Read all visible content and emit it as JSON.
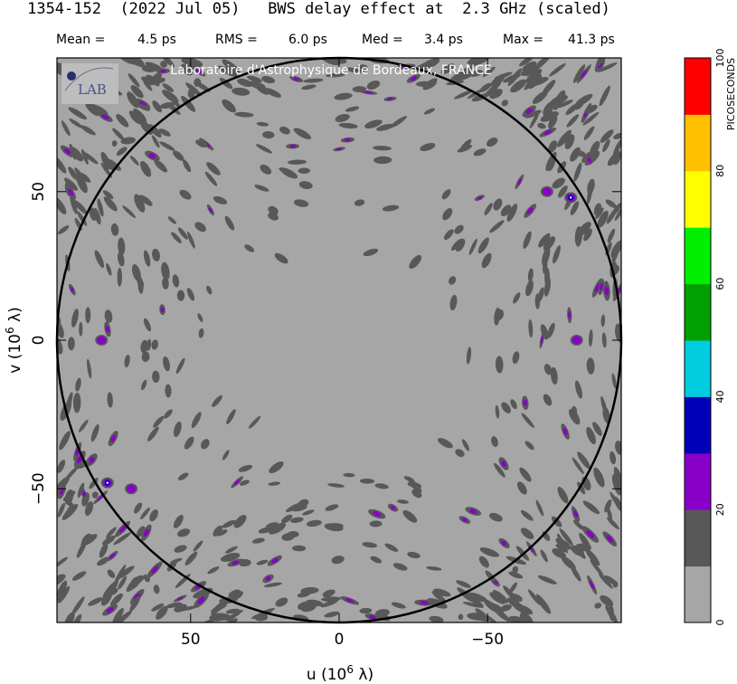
{
  "header": {
    "title": "1354-152  (2022 Jul 05)   BWS delay effect at  2.3 GHz (scaled)",
    "stats": [
      {
        "label": "Mean =",
        "value": "4.5 ps"
      },
      {
        "label": "RMS =",
        "value": "6.0 ps"
      },
      {
        "label": "Med =",
        "value": "3.4 ps"
      },
      {
        "label": "Max =",
        "value": "41.3 ps"
      }
    ]
  },
  "watermark": "Laboratoire d'Astrophysique de Bordeaux, FRANCE",
  "logo_text": "LAB",
  "axes": {
    "xlabel_main": "u  (10",
    "xlabel_exp": "6",
    "xlabel_tail": " λ)",
    "ylabel_main": "v  (10",
    "ylabel_exp": "6",
    "ylabel_tail": " λ)"
  },
  "colorbar": {
    "label": "PICOSECONDS",
    "ticks": [
      "0",
      "20",
      "40",
      "60",
      "80",
      "100"
    ],
    "bands": [
      "#a6a6a6",
      "#585858",
      "#8800c8",
      "#0000b8",
      "#00cce0",
      "#00a000",
      "#00ee00",
      "#ffff00",
      "#ffc000",
      "#ff0000"
    ]
  },
  "colors": {
    "background": "#a6a6a6",
    "contour_dark": "#585858",
    "contour_purple": "#8800c8",
    "contour_blue": "#0000b8",
    "circle": "#000000"
  },
  "chart_data": {
    "type": "heatmap",
    "title": "1354-152  (2022 Jul 05)   BWS delay effect at  2.3 GHz (scaled)",
    "xlabel": "u  (10^6 λ)",
    "ylabel": "v  (10^6 λ)",
    "xlim": [
      95,
      -95
    ],
    "ylim": [
      -95,
      95
    ],
    "xticks": [
      {
        "value": 50,
        "label": "50"
      },
      {
        "value": 0,
        "label": "0"
      },
      {
        "value": -50,
        "label": "−50"
      }
    ],
    "yticks": [
      {
        "value": 50,
        "label": "50"
      },
      {
        "value": 0,
        "label": "0"
      },
      {
        "value": -50,
        "label": "−50"
      }
    ],
    "circle_radius": 95,
    "colorbar_range": [
      0,
      100
    ],
    "colorbar_unit": "PICOSECONDS",
    "stats": {
      "mean": 4.5,
      "rms": 6.0,
      "median": 3.4,
      "max": 41.3
    },
    "peak_regions": [
      {
        "u": 78,
        "v": -48,
        "level": "blue"
      },
      {
        "u": -78,
        "v": 48,
        "level": "blue"
      },
      {
        "u": 70,
        "v": -50,
        "level": "purple"
      },
      {
        "u": -70,
        "v": 50,
        "level": "purple"
      },
      {
        "u": 80,
        "v": 0,
        "level": "purple"
      },
      {
        "u": -80,
        "v": 0,
        "level": "purple"
      }
    ]
  }
}
